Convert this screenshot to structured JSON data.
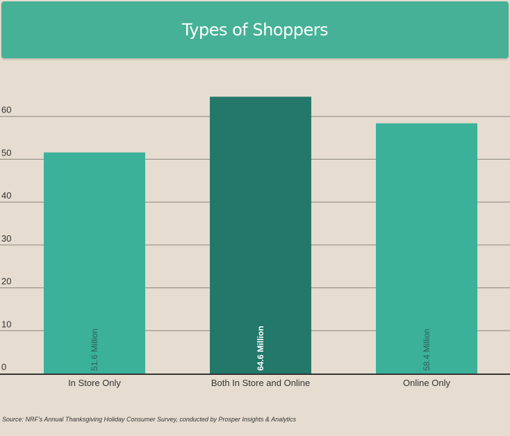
{
  "chart_data": {
    "type": "bar",
    "title": "Types of Shoppers",
    "categories": [
      "In Store Only",
      "Both In Store and Online",
      "Online Only"
    ],
    "values": [
      51.6,
      64.6,
      58.4
    ],
    "data_labels": [
      "51.6 Million",
      "64.6 Million",
      "58.4 Million"
    ],
    "y_ticks": [
      "0",
      "10",
      "20",
      "30",
      "40",
      "50",
      "60"
    ],
    "ylim": [
      0,
      70
    ],
    "grid": true,
    "bar_colors": [
      "#3bb19a",
      "#23786a",
      "#3bb19a"
    ],
    "xlabel": "",
    "ylabel": ""
  },
  "source": "Source:  NRF's Annual Thanksgiving Holiday Consumer Survey, conducted by Prosper Insights & Analytics",
  "colors": {
    "background": "#e6dccf",
    "banner": "#46b196",
    "gridline": "#8a8580",
    "axis": "#333333"
  }
}
